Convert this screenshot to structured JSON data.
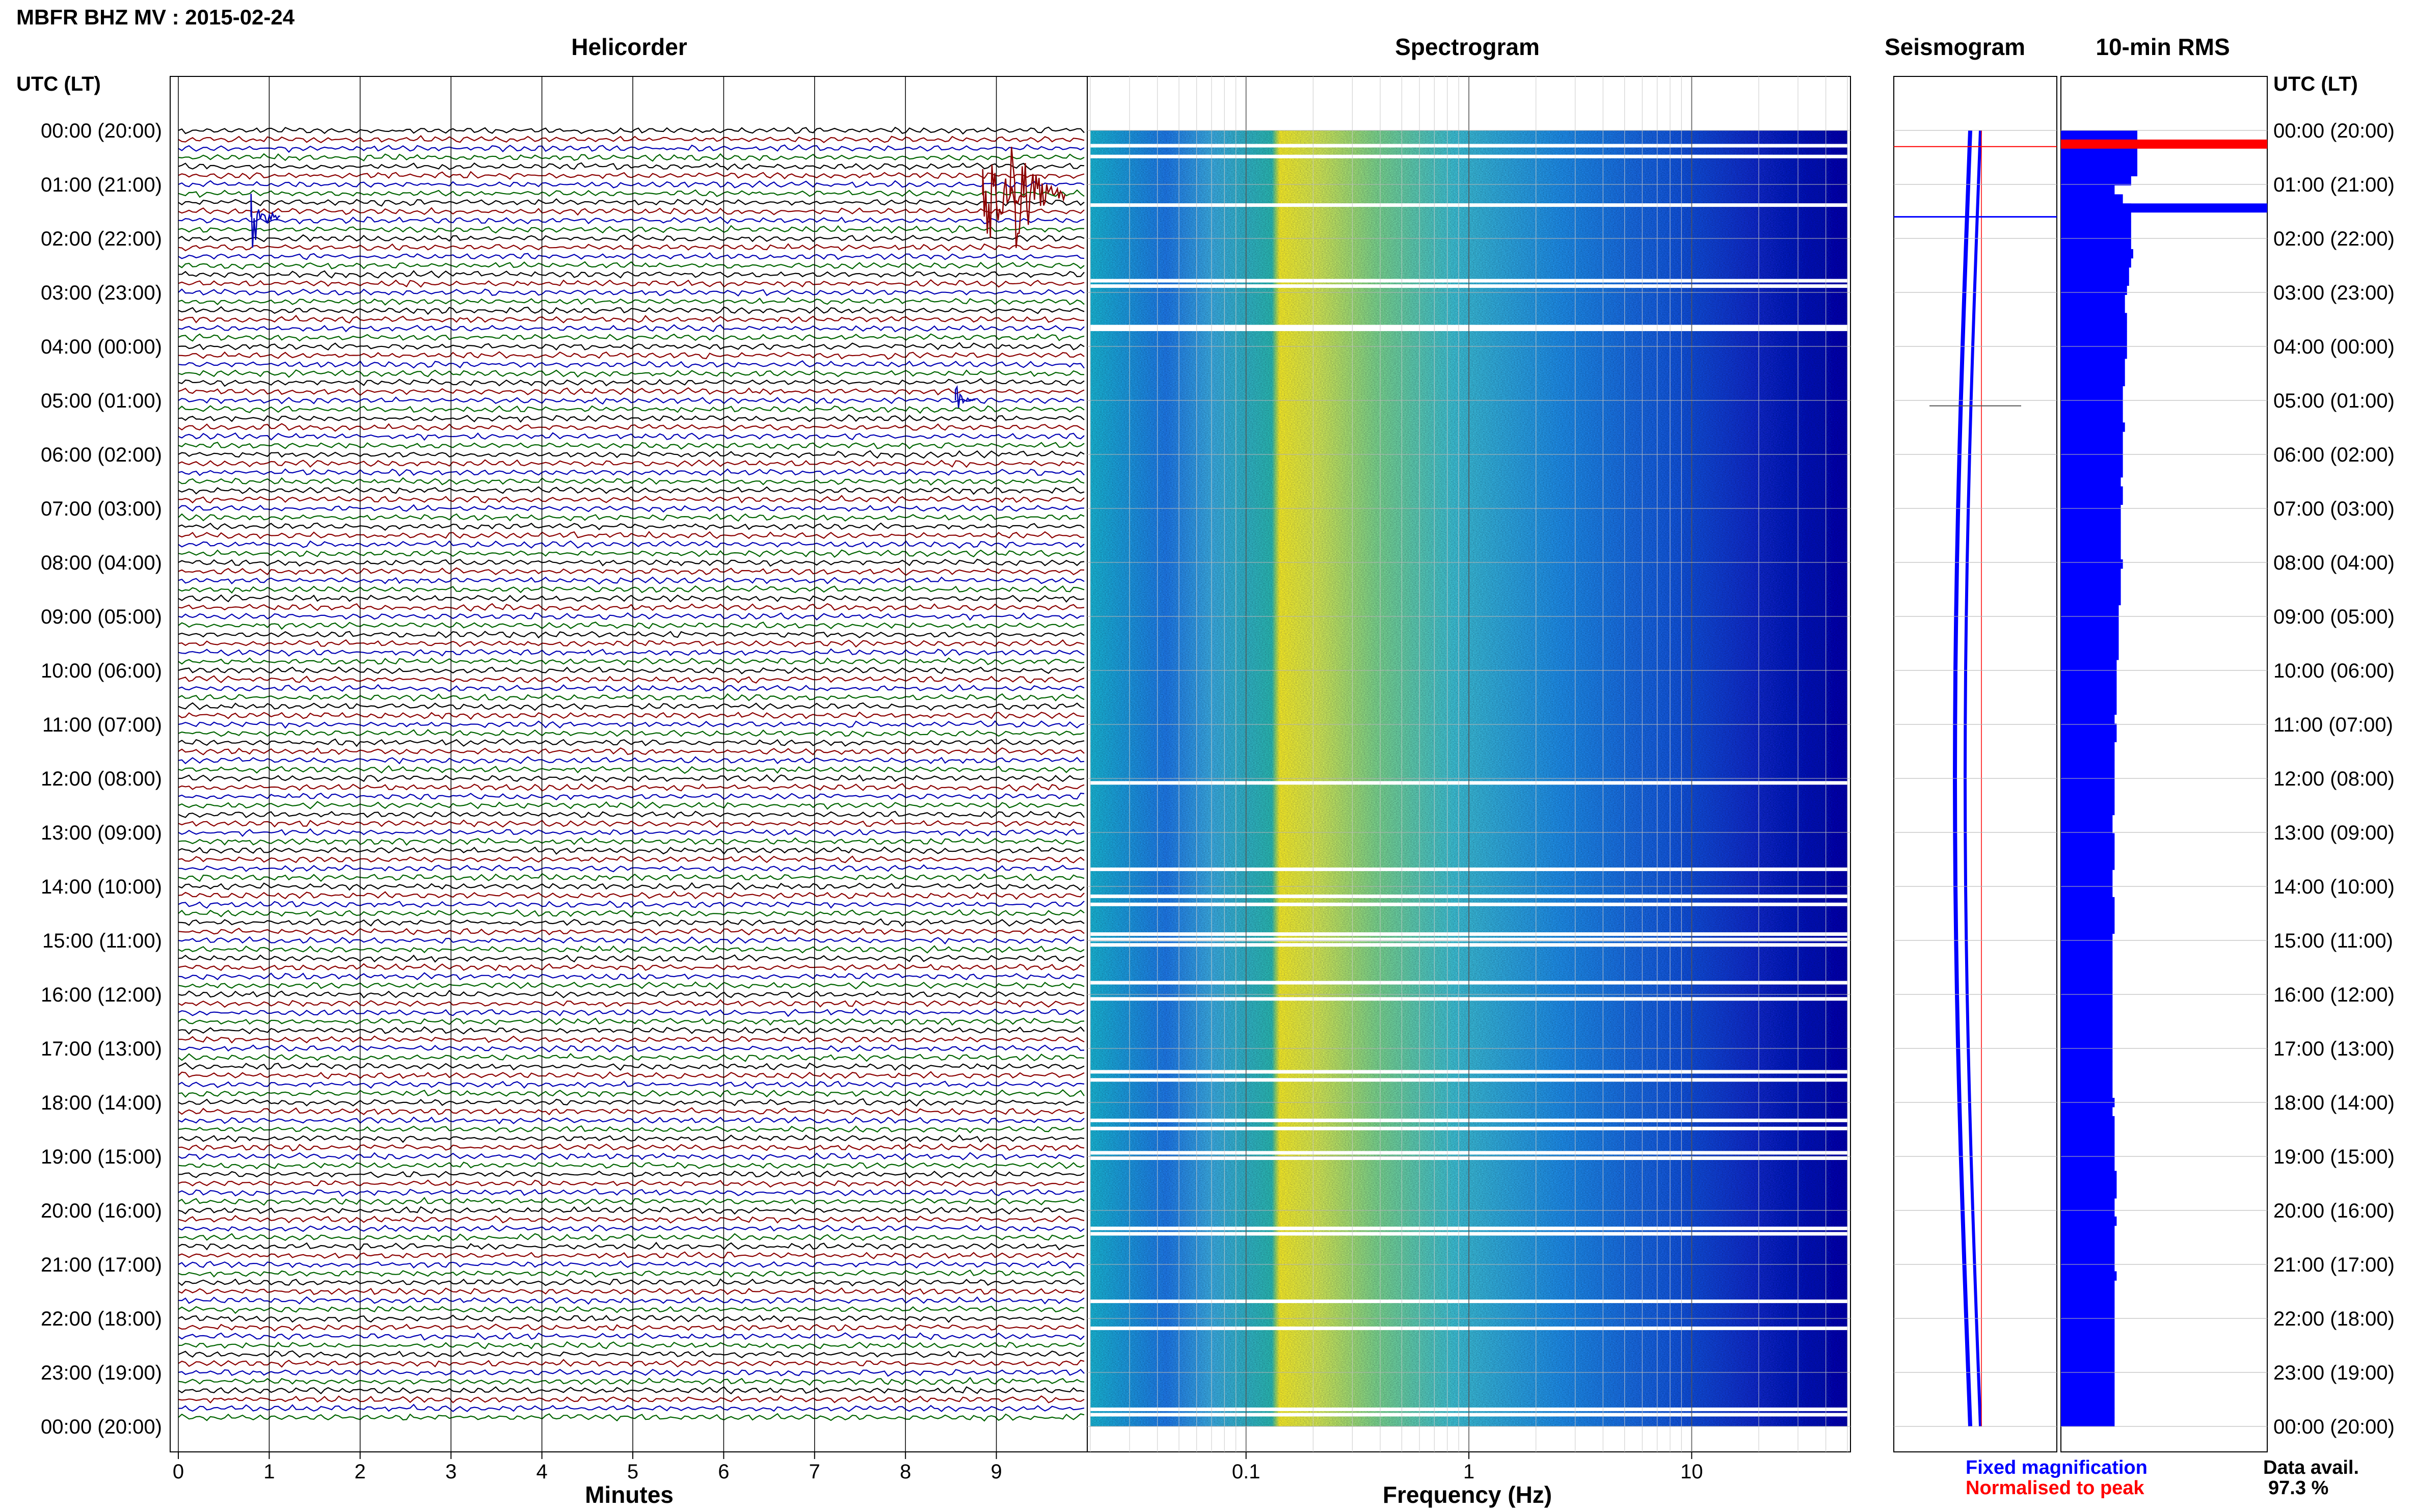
{
  "header": {
    "title": "MBFR BHZ MV : 2015-02-24"
  },
  "panels": {
    "helicorder": "Helicorder",
    "spectrogram": "Spectrogram",
    "seismogram": "Seismogram",
    "rms": "10-min RMS"
  },
  "axis": {
    "time_header": "UTC (LT)",
    "minutes_label": "Minutes",
    "frequency_label": "Frequency (Hz)"
  },
  "legend": {
    "fixed": "Fixed magnification",
    "normalised": "Normalised to peak",
    "data_avail_label": "Data avail.",
    "data_avail_value": "97.3 %"
  },
  "colors": {
    "trace_cycle": [
      "#000000",
      "#8b0000",
      "#0000b4",
      "#006400"
    ],
    "rms_bar": "#0000ff",
    "rms_peak": "#ff0000",
    "fixed_text": "#0000ff",
    "normalised_text": "#ff0000",
    "grid": "#b4b4b4"
  },
  "chart_data": {
    "type": "heatmap",
    "time_ticks": [
      "00:00 (20:00)",
      "01:00 (21:00)",
      "02:00 (22:00)",
      "03:00 (23:00)",
      "04:00 (00:00)",
      "05:00 (01:00)",
      "06:00 (02:00)",
      "07:00 (03:00)",
      "08:00 (04:00)",
      "09:00 (05:00)",
      "10:00 (06:00)",
      "11:00 (07:00)",
      "12:00 (08:00)",
      "13:00 (09:00)",
      "14:00 (10:00)",
      "15:00 (11:00)",
      "16:00 (12:00)",
      "17:00 (13:00)",
      "18:00 (14:00)",
      "19:00 (15:00)",
      "20:00 (16:00)",
      "21:00 (17:00)",
      "22:00 (18:00)",
      "23:00 (19:00)",
      "00:00 (20:00)"
    ],
    "minute_ticks": [
      "0",
      "1",
      "2",
      "3",
      "4",
      "5",
      "6",
      "7",
      "8",
      "9"
    ],
    "minute_values": [
      0,
      1,
      2,
      3,
      4,
      5,
      6,
      7,
      8,
      9
    ],
    "minute_range": [
      0,
      10
    ],
    "frequency_ticks": [
      "0.1",
      "1",
      "10"
    ],
    "frequency_values": [
      0.1,
      1,
      10
    ],
    "frequency_range": [
      0.02,
      50
    ],
    "frequency_scale": "log",
    "hours_range": [
      0,
      24
    ],
    "rms_10min": [
      3.7,
      3.7,
      3.7,
      3.7,
      3.7,
      3.4,
      2.6,
      3.0,
      3.4,
      3.4,
      3.4,
      3.4,
      3.4,
      3.5,
      3.4,
      3.3,
      3.3,
      3.2,
      3.1,
      3.1,
      3.2,
      3.2,
      3.2,
      3.2,
      3.2,
      3.1,
      3.1,
      3.1,
      3.0,
      3.0,
      3.0,
      3.0,
      3.1,
      3.0,
      3.0,
      3.0,
      3.0,
      3.0,
      2.9,
      3.0,
      3.0,
      2.9,
      2.9,
      2.9,
      2.9,
      2.9,
      2.9,
      3.0,
      2.9,
      2.9,
      2.9,
      2.9,
      2.8,
      2.8,
      2.8,
      2.8,
      2.8,
      2.8,
      2.7,
      2.7,
      2.7,
      2.7,
      2.7,
      2.7,
      2.6,
      2.7,
      2.7,
      2.6,
      2.6,
      2.6,
      2.6,
      2.6,
      2.6,
      2.6,
      2.6,
      2.5,
      2.5,
      2.6,
      2.6,
      2.6,
      2.6,
      2.5,
      2.5,
      2.5,
      2.6,
      2.6,
      2.6,
      2.6,
      2.5,
      2.5,
      2.5,
      2.5,
      2.5,
      2.5,
      2.5,
      2.5,
      2.5,
      2.5,
      2.5,
      2.5,
      2.5,
      2.5,
      2.5,
      2.5,
      2.5,
      2.5,
      2.6,
      2.5,
      2.6,
      2.6,
      2.6,
      2.6,
      2.6,
      2.6,
      2.7,
      2.7,
      2.7,
      2.6,
      2.6,
      2.7,
      2.6,
      2.6,
      2.6,
      2.6,
      2.6,
      2.7,
      2.6,
      2.6,
      2.6,
      2.6,
      2.6,
      2.6,
      2.6,
      2.6,
      2.6,
      2.6,
      2.6,
      2.6,
      2.6,
      2.6,
      2.6,
      2.6
    ],
    "rms_peak_intervals": [
      1,
      8
    ]
  }
}
